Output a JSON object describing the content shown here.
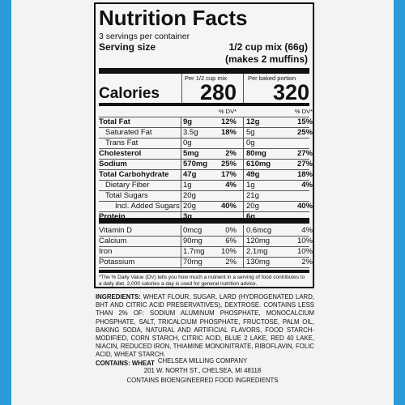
{
  "header": {
    "title": "Nutrition Facts",
    "servings": "3 servings per container",
    "serving_size_label": "Serving size",
    "serving_size_value": "1/2 cup mix (66g)",
    "serving_size_note": "(makes 2 muffins)"
  },
  "columns": [
    "Per 1/2 cup mix",
    "Per baked portion"
  ],
  "calories": {
    "label": "Calories",
    "values": [
      "280",
      "320"
    ]
  },
  "dv_header": "% DV*",
  "rows": [
    {
      "name": "Total Fat",
      "amounts": [
        "9g",
        "12g"
      ],
      "dv": [
        "12%",
        "15%"
      ]
    },
    {
      "name": "Saturated Fat",
      "amounts": [
        "3.5g",
        "5g"
      ],
      "dv": [
        "18%",
        "25%"
      ]
    },
    {
      "name": "Trans Fat",
      "amounts": [
        "0g",
        "0g"
      ]
    },
    {
      "name": "Cholesterol",
      "amounts": [
        "5mg",
        "80mg"
      ],
      "dv": [
        "2%",
        "27%"
      ]
    },
    {
      "name": "Sodium",
      "amounts": [
        "570mg",
        "610mg"
      ],
      "dv": [
        "25%",
        "27%"
      ]
    },
    {
      "name": "Total Carbohydrate",
      "amounts": [
        "47g",
        "49g"
      ],
      "dv": [
        "17%",
        "18%"
      ]
    },
    {
      "name": "Dietary Fiber",
      "amounts": [
        "1g",
        "1g"
      ],
      "dv": [
        "4%",
        "4%"
      ]
    },
    {
      "name": "Total Sugars",
      "amounts": [
        "20g",
        "21g"
      ]
    },
    {
      "name": "Incl. Added Sugars",
      "amounts": [
        "20g",
        "20g"
      ],
      "dv": [
        "40%",
        "40%"
      ]
    },
    {
      "name": "Protein",
      "amounts": [
        "3g",
        "6g"
      ]
    }
  ],
  "vitamins": [
    {
      "name": "Vitamin D",
      "amounts": [
        "0mcg",
        "0.6mcg"
      ],
      "dv": [
        "0%",
        "4%"
      ]
    },
    {
      "name": "Calcium",
      "amounts": [
        "90mg",
        "120mg"
      ],
      "dv": [
        "6%",
        "10%"
      ]
    },
    {
      "name": "Iron",
      "amounts": [
        "1.7mg",
        "2.1mg"
      ],
      "dv": [
        "10%",
        "10%"
      ]
    },
    {
      "name": "Potassium",
      "amounts": [
        "70mg",
        "130mg"
      ],
      "dv": [
        "2%",
        "2%"
      ]
    }
  ],
  "footnote": "*The % Daily Value (DV) tells you how much a nutrient in a serving of food contributes to a daily diet. 2,000 calories a day is used for general nutrition advice.",
  "ingredients": {
    "label": "INGREDIENTS:",
    "text": "WHEAT FLOUR, SUGAR, LARD (HYDROGENATED LARD, BHT AND CITRIC ACID PRESERVATIVES), DEXTROSE. CONTAINS LESS THAN 2% OF: SODIUM ALUMINUM PHOSPHATE, MONOCALCIUM PHOSPHATE, SALT, TRICALCIUM PHOSPHATE, FRUCTOSE, PALM OIL, BAKING SODA, NATURAL AND ARTIFICIAL FLAVORS, FOOD STARCH-MODIFIED, CORN STARCH, CITRIC ACID, BLUE 2 LAKE, RED 40 LAKE, NIACIN, REDUCED IRON, THIAMINE MONONITRATE, RIBOFLAVIN, FOLIC ACID, WHEAT STARCH.",
    "contains": "CONTAINS: WHEAT"
  },
  "company": [
    "CHELSEA MILLING COMPANY",
    "201 W. NORTH ST., CHELSEA, MI 48118",
    "CONTAINS BIOENGINEERED FOOD INGREDIENTS"
  ]
}
